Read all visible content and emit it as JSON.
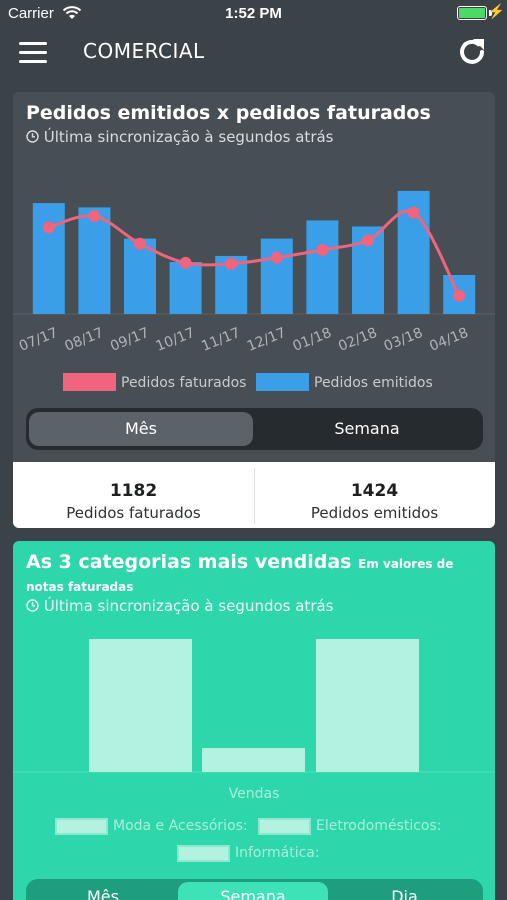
{
  "status_bar": {
    "carrier": "Carrier",
    "time": "1:52 PM"
  },
  "nav": {
    "title": "COMERCIAL",
    "menu_icon": "hamburger-menu-icon",
    "refresh_icon": "refresh-icon"
  },
  "card_orders": {
    "title": "Pedidos emitidos x pedidos faturados",
    "sync_text": "Última sincronização à segundos atrás",
    "segment": {
      "options": [
        "Mês",
        "Semana"
      ],
      "selected": "Mês"
    },
    "totals": [
      {
        "value": "1182",
        "label": "Pedidos faturados"
      },
      {
        "value": "1424",
        "label": "Pedidos emitidos"
      }
    ]
  },
  "card_categories": {
    "title": "As 3 categorias mais vendidas",
    "title_note": "Em valores de notas faturadas",
    "sync_text": "Última sincronização à segundos atrás",
    "segment": {
      "options": [
        "Mês",
        "Semana",
        "Dia"
      ],
      "selected": "Semana"
    }
  },
  "colors": {
    "background": "#3b4349",
    "card_dark": "#474f55",
    "card_green": "#2dd6ab",
    "faturados": "#f0647e",
    "emitidos": "#3a9ee8"
  },
  "chart_data": [
    {
      "type": "bar",
      "categories": [
        "07/17",
        "08/17",
        "09/17",
        "10/17",
        "11/17",
        "12/17",
        "01/18",
        "02/18",
        "03/18",
        "04/18"
      ],
      "series": [
        {
          "name": "Pedidos emitidos",
          "kind": "bar",
          "color": "#3a9ee8",
          "values": [
            128,
            123,
            87,
            60,
            67,
            87,
            108,
            101,
            142,
            45
          ]
        },
        {
          "name": "Pedidos faturados",
          "kind": "line",
          "color": "#f0647e",
          "values": [
            100,
            113,
            81,
            59,
            58,
            65,
            74,
            85,
            117,
            21
          ]
        }
      ],
      "ylim": [
        0,
        150
      ],
      "grid": false,
      "legend": "bottom"
    },
    {
      "type": "bar",
      "xlabel": "Vendas",
      "categories": [
        "Vendas"
      ],
      "series": [
        {
          "name": "Moda e Acessórios:",
          "values": [
            100
          ]
        },
        {
          "name": "Eletrodomésticos:",
          "values": [
            18
          ]
        },
        {
          "name": "Informática:",
          "values": [
            100
          ]
        }
      ],
      "ylim": [
        0,
        100
      ],
      "legend": "bottom"
    }
  ]
}
